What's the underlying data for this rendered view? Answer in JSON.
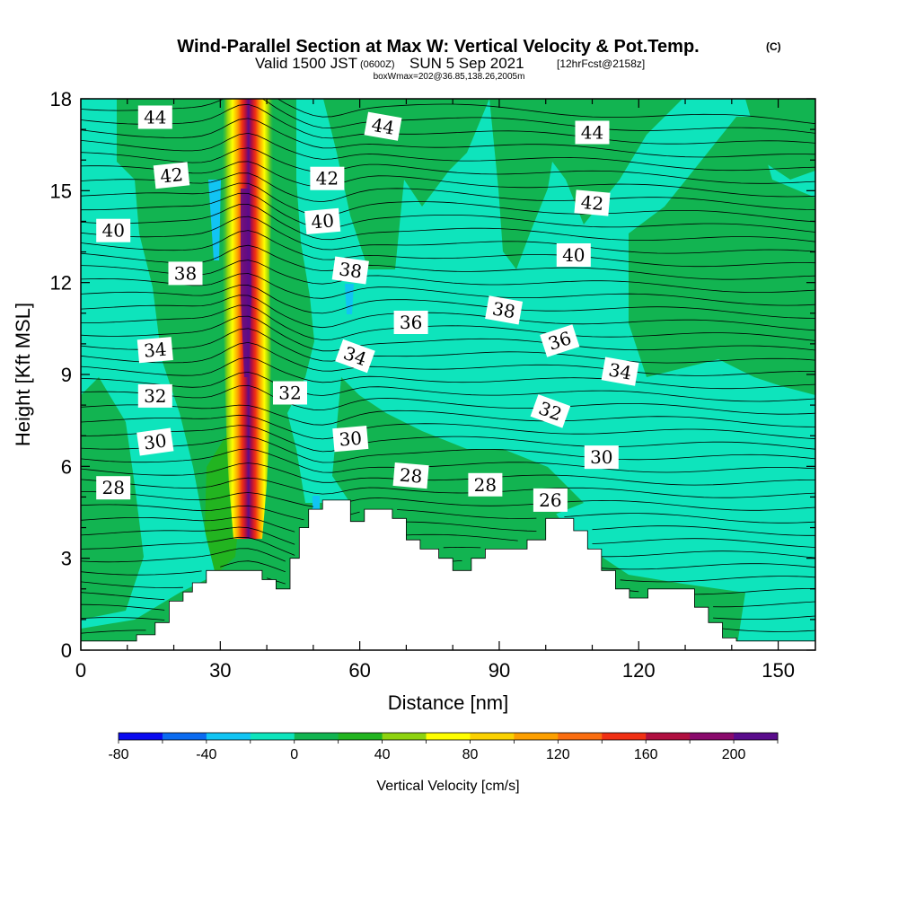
{
  "header": {
    "title_main": "Wind-Parallel Section at Max W: Vertical Velocity & Pot.Temp.",
    "title_mark": "(C)",
    "valid_prefix": "Valid 1500 JST",
    "valid_utc": "(0600Z)",
    "valid_date": "SUN 5 Sep 2021",
    "forecast": "[12hrFcst@2158z]",
    "boxinfo": "boxWmax=202@36.85,138.26,2005m"
  },
  "chart_data": {
    "type": "heatmap",
    "xlabel": "Distance [nm]",
    "ylabel": "Height [Kft MSL]",
    "xlim": [
      0,
      158
    ],
    "ylim": [
      0,
      18
    ],
    "xticks": [
      0,
      30,
      60,
      90,
      120,
      150
    ],
    "yticks": [
      0,
      3,
      6,
      9,
      12,
      15,
      18
    ],
    "colorbar": {
      "label": "Vertical Velocity [cm/s]",
      "min": -80,
      "max": 220,
      "step": 20,
      "tick_values": [
        -80,
        -40,
        0,
        40,
        80,
        120,
        160,
        200
      ],
      "colors": [
        "#0a0aef",
        "#0b6bf0",
        "#11c4f3",
        "#0ee4bc",
        "#12b451",
        "#22b420",
        "#8ed30f",
        "#ffff00",
        "#fbd100",
        "#fc9f00",
        "#fa6d10",
        "#f03014",
        "#b00f40",
        "#8a0a6c",
        "#5a0c8c"
      ]
    },
    "terrain": [
      [
        0,
        0.3
      ],
      [
        12,
        0.3
      ],
      [
        12,
        0.5
      ],
      [
        16,
        0.5
      ],
      [
        16,
        0.9
      ],
      [
        19,
        0.9
      ],
      [
        19,
        1.6
      ],
      [
        22,
        1.6
      ],
      [
        22,
        1.9
      ],
      [
        24,
        1.9
      ],
      [
        24,
        2.2
      ],
      [
        27,
        2.2
      ],
      [
        27,
        2.6
      ],
      [
        39,
        2.6
      ],
      [
        39,
        2.3
      ],
      [
        42,
        2.3
      ],
      [
        42,
        2.0
      ],
      [
        45,
        2.0
      ],
      [
        45,
        3.0
      ],
      [
        47,
        3.0
      ],
      [
        47,
        4.0
      ],
      [
        49,
        4.0
      ],
      [
        49,
        4.6
      ],
      [
        52,
        4.6
      ],
      [
        52,
        4.9
      ],
      [
        58,
        4.9
      ],
      [
        58,
        4.2
      ],
      [
        61,
        4.2
      ],
      [
        61,
        4.6
      ],
      [
        67,
        4.6
      ],
      [
        67,
        4.3
      ],
      [
        70,
        4.3
      ],
      [
        70,
        3.6
      ],
      [
        73,
        3.6
      ],
      [
        73,
        3.3
      ],
      [
        77,
        3.3
      ],
      [
        77,
        3.0
      ],
      [
        80,
        3.0
      ],
      [
        80,
        2.6
      ],
      [
        84,
        2.6
      ],
      [
        84,
        3.0
      ],
      [
        87,
        3.0
      ],
      [
        87,
        3.3
      ],
      [
        96,
        3.3
      ],
      [
        96,
        3.6
      ],
      [
        100,
        3.6
      ],
      [
        100,
        4.3
      ],
      [
        106,
        4.3
      ],
      [
        106,
        3.9
      ],
      [
        109,
        3.9
      ],
      [
        109,
        3.3
      ],
      [
        112,
        3.3
      ],
      [
        112,
        2.6
      ],
      [
        115,
        2.6
      ],
      [
        115,
        2.0
      ],
      [
        118,
        2.0
      ],
      [
        118,
        1.7
      ],
      [
        122,
        1.7
      ],
      [
        122,
        2.0
      ],
      [
        132,
        2.0
      ],
      [
        132,
        1.4
      ],
      [
        135,
        1.4
      ],
      [
        135,
        0.9
      ],
      [
        138,
        0.9
      ],
      [
        138,
        0.4
      ],
      [
        141,
        0.4
      ],
      [
        141,
        0.3
      ],
      [
        158,
        0.3
      ]
    ],
    "theta_labels": [
      {
        "value": "44",
        "x": 16,
        "y": 17.4,
        "rot": 0
      },
      {
        "value": "44",
        "x": 65,
        "y": 17.1,
        "rot": 10
      },
      {
        "value": "44",
        "x": 110,
        "y": 16.9,
        "rot": 0
      },
      {
        "value": "42",
        "x": 19.5,
        "y": 15.5,
        "rot": -6
      },
      {
        "value": "42",
        "x": 53,
        "y": 15.4,
        "rot": 0
      },
      {
        "value": "42",
        "x": 110,
        "y": 14.6,
        "rot": 5
      },
      {
        "value": "40",
        "x": 7,
        "y": 13.7,
        "rot": 0
      },
      {
        "value": "40",
        "x": 52,
        "y": 14.0,
        "rot": -5
      },
      {
        "value": "40",
        "x": 106,
        "y": 12.9,
        "rot": 0
      },
      {
        "value": "38",
        "x": 22.5,
        "y": 12.3,
        "rot": 0
      },
      {
        "value": "38",
        "x": 58,
        "y": 12.4,
        "rot": 8
      },
      {
        "value": "38",
        "x": 91,
        "y": 11.1,
        "rot": 10
      },
      {
        "value": "36",
        "x": 71,
        "y": 10.7,
        "rot": 0
      },
      {
        "value": "36",
        "x": 103,
        "y": 10.1,
        "rot": -18
      },
      {
        "value": "34",
        "x": 16,
        "y": 9.8,
        "rot": -5
      },
      {
        "value": "34",
        "x": 59,
        "y": 9.6,
        "rot": 20
      },
      {
        "value": "34",
        "x": 116,
        "y": 9.1,
        "rot": 10
      },
      {
        "value": "32",
        "x": 16,
        "y": 8.3,
        "rot": 0
      },
      {
        "value": "32",
        "x": 45,
        "y": 8.4,
        "rot": 0
      },
      {
        "value": "32",
        "x": 101,
        "y": 7.8,
        "rot": 20
      },
      {
        "value": "30",
        "x": 16,
        "y": 6.8,
        "rot": -8
      },
      {
        "value": "30",
        "x": 58,
        "y": 6.9,
        "rot": -5
      },
      {
        "value": "30",
        "x": 112,
        "y": 6.3,
        "rot": 0
      },
      {
        "value": "28",
        "x": 7,
        "y": 5.3,
        "rot": 0
      },
      {
        "value": "28",
        "x": 71,
        "y": 5.7,
        "rot": 5
      },
      {
        "value": "28",
        "x": 87,
        "y": 5.4,
        "rot": 0
      },
      {
        "value": "26",
        "x": 101,
        "y": 4.9,
        "rot": 0
      }
    ],
    "updraft_core_x": 35.5
  }
}
